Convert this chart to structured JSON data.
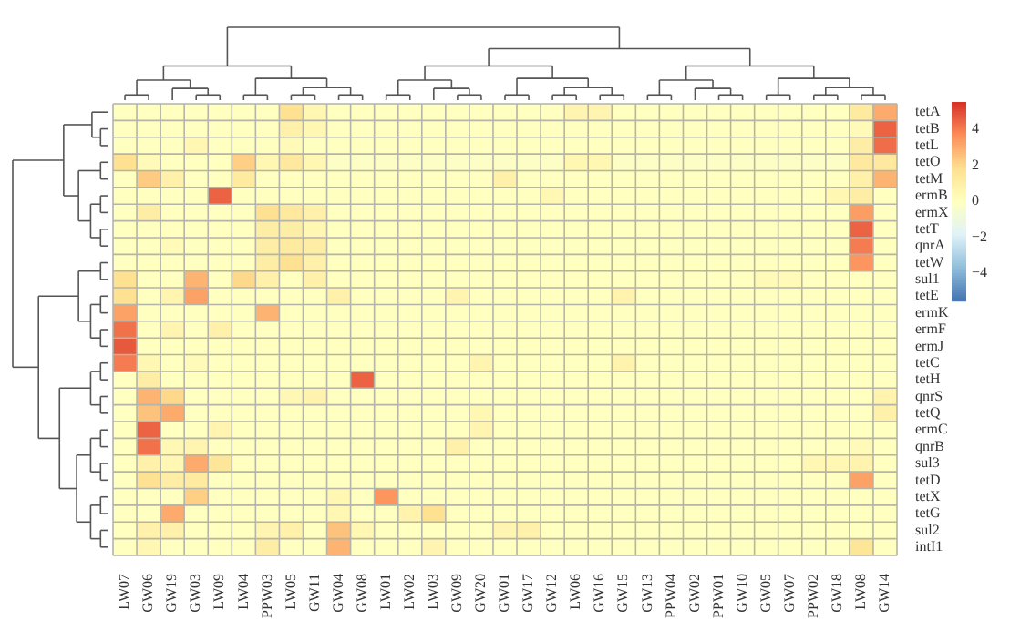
{
  "chart_data": {
    "type": "heatmap",
    "categories": [
      "LW07",
      "GW06",
      "GW19",
      "GW03",
      "LW09",
      "LW04",
      "PPW03",
      "LW05",
      "GW11",
      "GW04",
      "GW08",
      "LW01",
      "LW02",
      "LW03",
      "GW09",
      "GW20",
      "GW01",
      "GW17",
      "GW12",
      "LW06",
      "GW16",
      "GW15",
      "GW13",
      "PPW04",
      "GW02",
      "PPW01",
      "GW10",
      "GW05",
      "GW07",
      "PPW02",
      "GW18",
      "LW08",
      "GW14"
    ],
    "y_categories": [
      "tetA",
      "tetB",
      "tetL",
      "tetO",
      "tetM",
      "ermB",
      "ermX",
      "tetT",
      "qnrA",
      "tetW",
      "sul1",
      "tetE",
      "ermK",
      "ermF",
      "ermJ",
      "tetC",
      "tetH",
      "qnrS",
      "tetQ",
      "ermC",
      "qnrB",
      "sul3",
      "tetD",
      "tetX",
      "tetG",
      "sul2",
      "intI1"
    ],
    "cells": [
      [
        0,
        0,
        0,
        0,
        0,
        0,
        0,
        1.8,
        0.5,
        0,
        0,
        0,
        0,
        0,
        0,
        0,
        0,
        0,
        0,
        0.6,
        0.6,
        0,
        0,
        0,
        0,
        0,
        0,
        0,
        0,
        0,
        0,
        1.2,
        3
      ],
      [
        0,
        0,
        0,
        0,
        0,
        0,
        0,
        0.8,
        0.5,
        0,
        0,
        0,
        0,
        0,
        0,
        0,
        0,
        0,
        0,
        0,
        0,
        0,
        0,
        0,
        0,
        0,
        0,
        0,
        0,
        0,
        0,
        0.3,
        4.5
      ],
      [
        0,
        0,
        0,
        0.5,
        0,
        0,
        0,
        0.3,
        0,
        0,
        0,
        0,
        0,
        0,
        0,
        0,
        0,
        0,
        0,
        0,
        0,
        0,
        0,
        0,
        0,
        0,
        0,
        0,
        0,
        0,
        0,
        1,
        4.3
      ],
      [
        1.8,
        0.3,
        0,
        0,
        0,
        2.2,
        0.5,
        1.3,
        0.5,
        -0.2,
        -0.2,
        -0.2,
        -0.2,
        -0.2,
        -0.2,
        -0.2,
        -0.2,
        -0.2,
        -0.2,
        0.5,
        0.5,
        -0.2,
        -0.2,
        -0.2,
        -0.2,
        -0.2,
        -0.2,
        -0.2,
        -0.2,
        -0.2,
        -0.2,
        1.3,
        1.3
      ],
      [
        0,
        2.3,
        0.8,
        0,
        0,
        1.2,
        0,
        0,
        0,
        0,
        0,
        0,
        0,
        0,
        0,
        0,
        0.8,
        0,
        0,
        0,
        0,
        0,
        0,
        0,
        0,
        0,
        0,
        0,
        0,
        0,
        0,
        0.8,
        2.8
      ],
      [
        0,
        0,
        0,
        0,
        4.5,
        0,
        0,
        0,
        0,
        0,
        0,
        0,
        0,
        0,
        0,
        0,
        0,
        0,
        0.4,
        0,
        0,
        0,
        0,
        0,
        0,
        0,
        0,
        0,
        0,
        0,
        0.5,
        1,
        0
      ],
      [
        0,
        1,
        0,
        0,
        0,
        0,
        1.8,
        1.3,
        0.8,
        0,
        0,
        0,
        0,
        0,
        0,
        0,
        0,
        0,
        0,
        0,
        0,
        0,
        0,
        0,
        0,
        0,
        0,
        0,
        0,
        0,
        0,
        3.3,
        0
      ],
      [
        0,
        0,
        0,
        0,
        0,
        0,
        1,
        1,
        0.5,
        0,
        0,
        0,
        0,
        0,
        0,
        0,
        0,
        0,
        0,
        0,
        0,
        0,
        0,
        0,
        0,
        0,
        0,
        0,
        0,
        0,
        0,
        4.5,
        0
      ],
      [
        0,
        0,
        0.3,
        0,
        0,
        0,
        1,
        1.2,
        1,
        0,
        0,
        0,
        0,
        0,
        0,
        0,
        0,
        0,
        0,
        0,
        0,
        0,
        0,
        0,
        0,
        0,
        0,
        0,
        0,
        0,
        0,
        4,
        0
      ],
      [
        0,
        0,
        0,
        0,
        0,
        0,
        1,
        1.8,
        0.8,
        0,
        0,
        0,
        0,
        0,
        0,
        0,
        0,
        0,
        0,
        0,
        0,
        0,
        0,
        0,
        0,
        0,
        0,
        0,
        0,
        0,
        0,
        3.5,
        0
      ],
      [
        1.8,
        0,
        0,
        2.8,
        0,
        2,
        0.8,
        0,
        0.8,
        0,
        0,
        0,
        0,
        0,
        0,
        0,
        0,
        0,
        0,
        0,
        0,
        0,
        0,
        0,
        0,
        0,
        0,
        0.3,
        0.3,
        0,
        0,
        0,
        0
      ],
      [
        1.8,
        0,
        0.6,
        3.2,
        0,
        0,
        0,
        0,
        0,
        0.8,
        0,
        0,
        0,
        0,
        0.6,
        0,
        0,
        0,
        0,
        0,
        0,
        0.7,
        0,
        0,
        0,
        0,
        0,
        0,
        0,
        0,
        0,
        0,
        0
      ],
      [
        3.2,
        0,
        0,
        0,
        0,
        0,
        2.8,
        0,
        0,
        0,
        0,
        0,
        0,
        0,
        0,
        0,
        0,
        0,
        0,
        0,
        0,
        0,
        0,
        0,
        0,
        0,
        0,
        0,
        0,
        0,
        0,
        0,
        0
      ],
      [
        4.2,
        0,
        0.6,
        0,
        0.8,
        0,
        0,
        0,
        0,
        0,
        0,
        0,
        0,
        0,
        0,
        0,
        0,
        0,
        0,
        0,
        0,
        0,
        0,
        0,
        0,
        0,
        0,
        0,
        0,
        0,
        0,
        0,
        0
      ],
      [
        4.7,
        0,
        0,
        0,
        0,
        0,
        0,
        0,
        0,
        0,
        0,
        0,
        0,
        0,
        0,
        0,
        0,
        0,
        0,
        0,
        0,
        0,
        0,
        0,
        0,
        0,
        0,
        0,
        0,
        0,
        0,
        0,
        0
      ],
      [
        4,
        0.5,
        0,
        0.3,
        0,
        0,
        0,
        0,
        0,
        0,
        0,
        0,
        0,
        0,
        0,
        0.6,
        0,
        0,
        0,
        0,
        0,
        0.7,
        0,
        0,
        0,
        0,
        0,
        0,
        0,
        0,
        0,
        0,
        0
      ],
      [
        0,
        1,
        0,
        0,
        0,
        0,
        0,
        0,
        0,
        0,
        4.5,
        0,
        0,
        0,
        0,
        0,
        0,
        0,
        0,
        0,
        0,
        0,
        0,
        0,
        0,
        0,
        0,
        0,
        0,
        0,
        0,
        0,
        0
      ],
      [
        0,
        2.8,
        2,
        0,
        0,
        0,
        0,
        0.4,
        0.7,
        0,
        0,
        0,
        0,
        0,
        0,
        0,
        0,
        0,
        0,
        0,
        0,
        0,
        0,
        0,
        0,
        0,
        0,
        0,
        0,
        0,
        0,
        0,
        0.7
      ],
      [
        0,
        2.5,
        3,
        0,
        0,
        0,
        0,
        0,
        0,
        0,
        0,
        0,
        0,
        0,
        0,
        0.5,
        0,
        0,
        0,
        0,
        0,
        0,
        0,
        0,
        0,
        0,
        0,
        0,
        0,
        0,
        0,
        0,
        0.8
      ],
      [
        0,
        4.5,
        0,
        0,
        0.6,
        0,
        0,
        0,
        0,
        0,
        0,
        0,
        0,
        0,
        0,
        0.6,
        0,
        0,
        0,
        0,
        0,
        0,
        0,
        0,
        0,
        0,
        0,
        0,
        0,
        0,
        0,
        0,
        0
      ],
      [
        0,
        4.2,
        0.4,
        0.6,
        0,
        0,
        0,
        0,
        0,
        0,
        0,
        0,
        0,
        0,
        0.8,
        0,
        0,
        0,
        0,
        0,
        0,
        0,
        0,
        0,
        0,
        0,
        0,
        0,
        0,
        0,
        0,
        0.3,
        0
      ],
      [
        0,
        0.8,
        0.5,
        3,
        1.5,
        0,
        0,
        0,
        0,
        0,
        0,
        0,
        0,
        0,
        0,
        0,
        0,
        0,
        0,
        0,
        0,
        0,
        0,
        0,
        0,
        0,
        0,
        0,
        0,
        0.5,
        0.5,
        0.7,
        0
      ],
      [
        0,
        1.8,
        1,
        1.2,
        0,
        0,
        0,
        0,
        0,
        0,
        0,
        0,
        0,
        0,
        0,
        0,
        0,
        0,
        0,
        0,
        0,
        0,
        0,
        0,
        0,
        0,
        0,
        0,
        0,
        0,
        0,
        3.2,
        0
      ],
      [
        0,
        0,
        0,
        2.2,
        0,
        0,
        0,
        0,
        0,
        0.5,
        0,
        3.5,
        0,
        0,
        0,
        0,
        0,
        0,
        0,
        0,
        0,
        0,
        0,
        0,
        0,
        0,
        0,
        0,
        0,
        0,
        0,
        0,
        0
      ],
      [
        0,
        0,
        3,
        0,
        0,
        0,
        0,
        0,
        0,
        0.5,
        0,
        0,
        0.7,
        1.8,
        0,
        0,
        0,
        0,
        0,
        0,
        0,
        0,
        0,
        0,
        0,
        0,
        0,
        0,
        0,
        0,
        0,
        0,
        0
      ],
      [
        0,
        0.8,
        0.8,
        0,
        0,
        0,
        0.6,
        0.8,
        0,
        2.5,
        0.5,
        0,
        0,
        0,
        0,
        0,
        0.6,
        0.8,
        0,
        0,
        0,
        0,
        0,
        0,
        0,
        0,
        0,
        0,
        0,
        0,
        0,
        0,
        0
      ],
      [
        0,
        0.5,
        0,
        0,
        0,
        0,
        1,
        0,
        0,
        2.8,
        0,
        0,
        0,
        0.6,
        0,
        0,
        0,
        0,
        0,
        0,
        0,
        0,
        0,
        0,
        0,
        0,
        0,
        0,
        0,
        0,
        0,
        1.5,
        0
      ]
    ],
    "clim": [
      -5.5,
      5.5
    ],
    "cticks": [
      -4,
      -2,
      0,
      2,
      4
    ]
  }
}
